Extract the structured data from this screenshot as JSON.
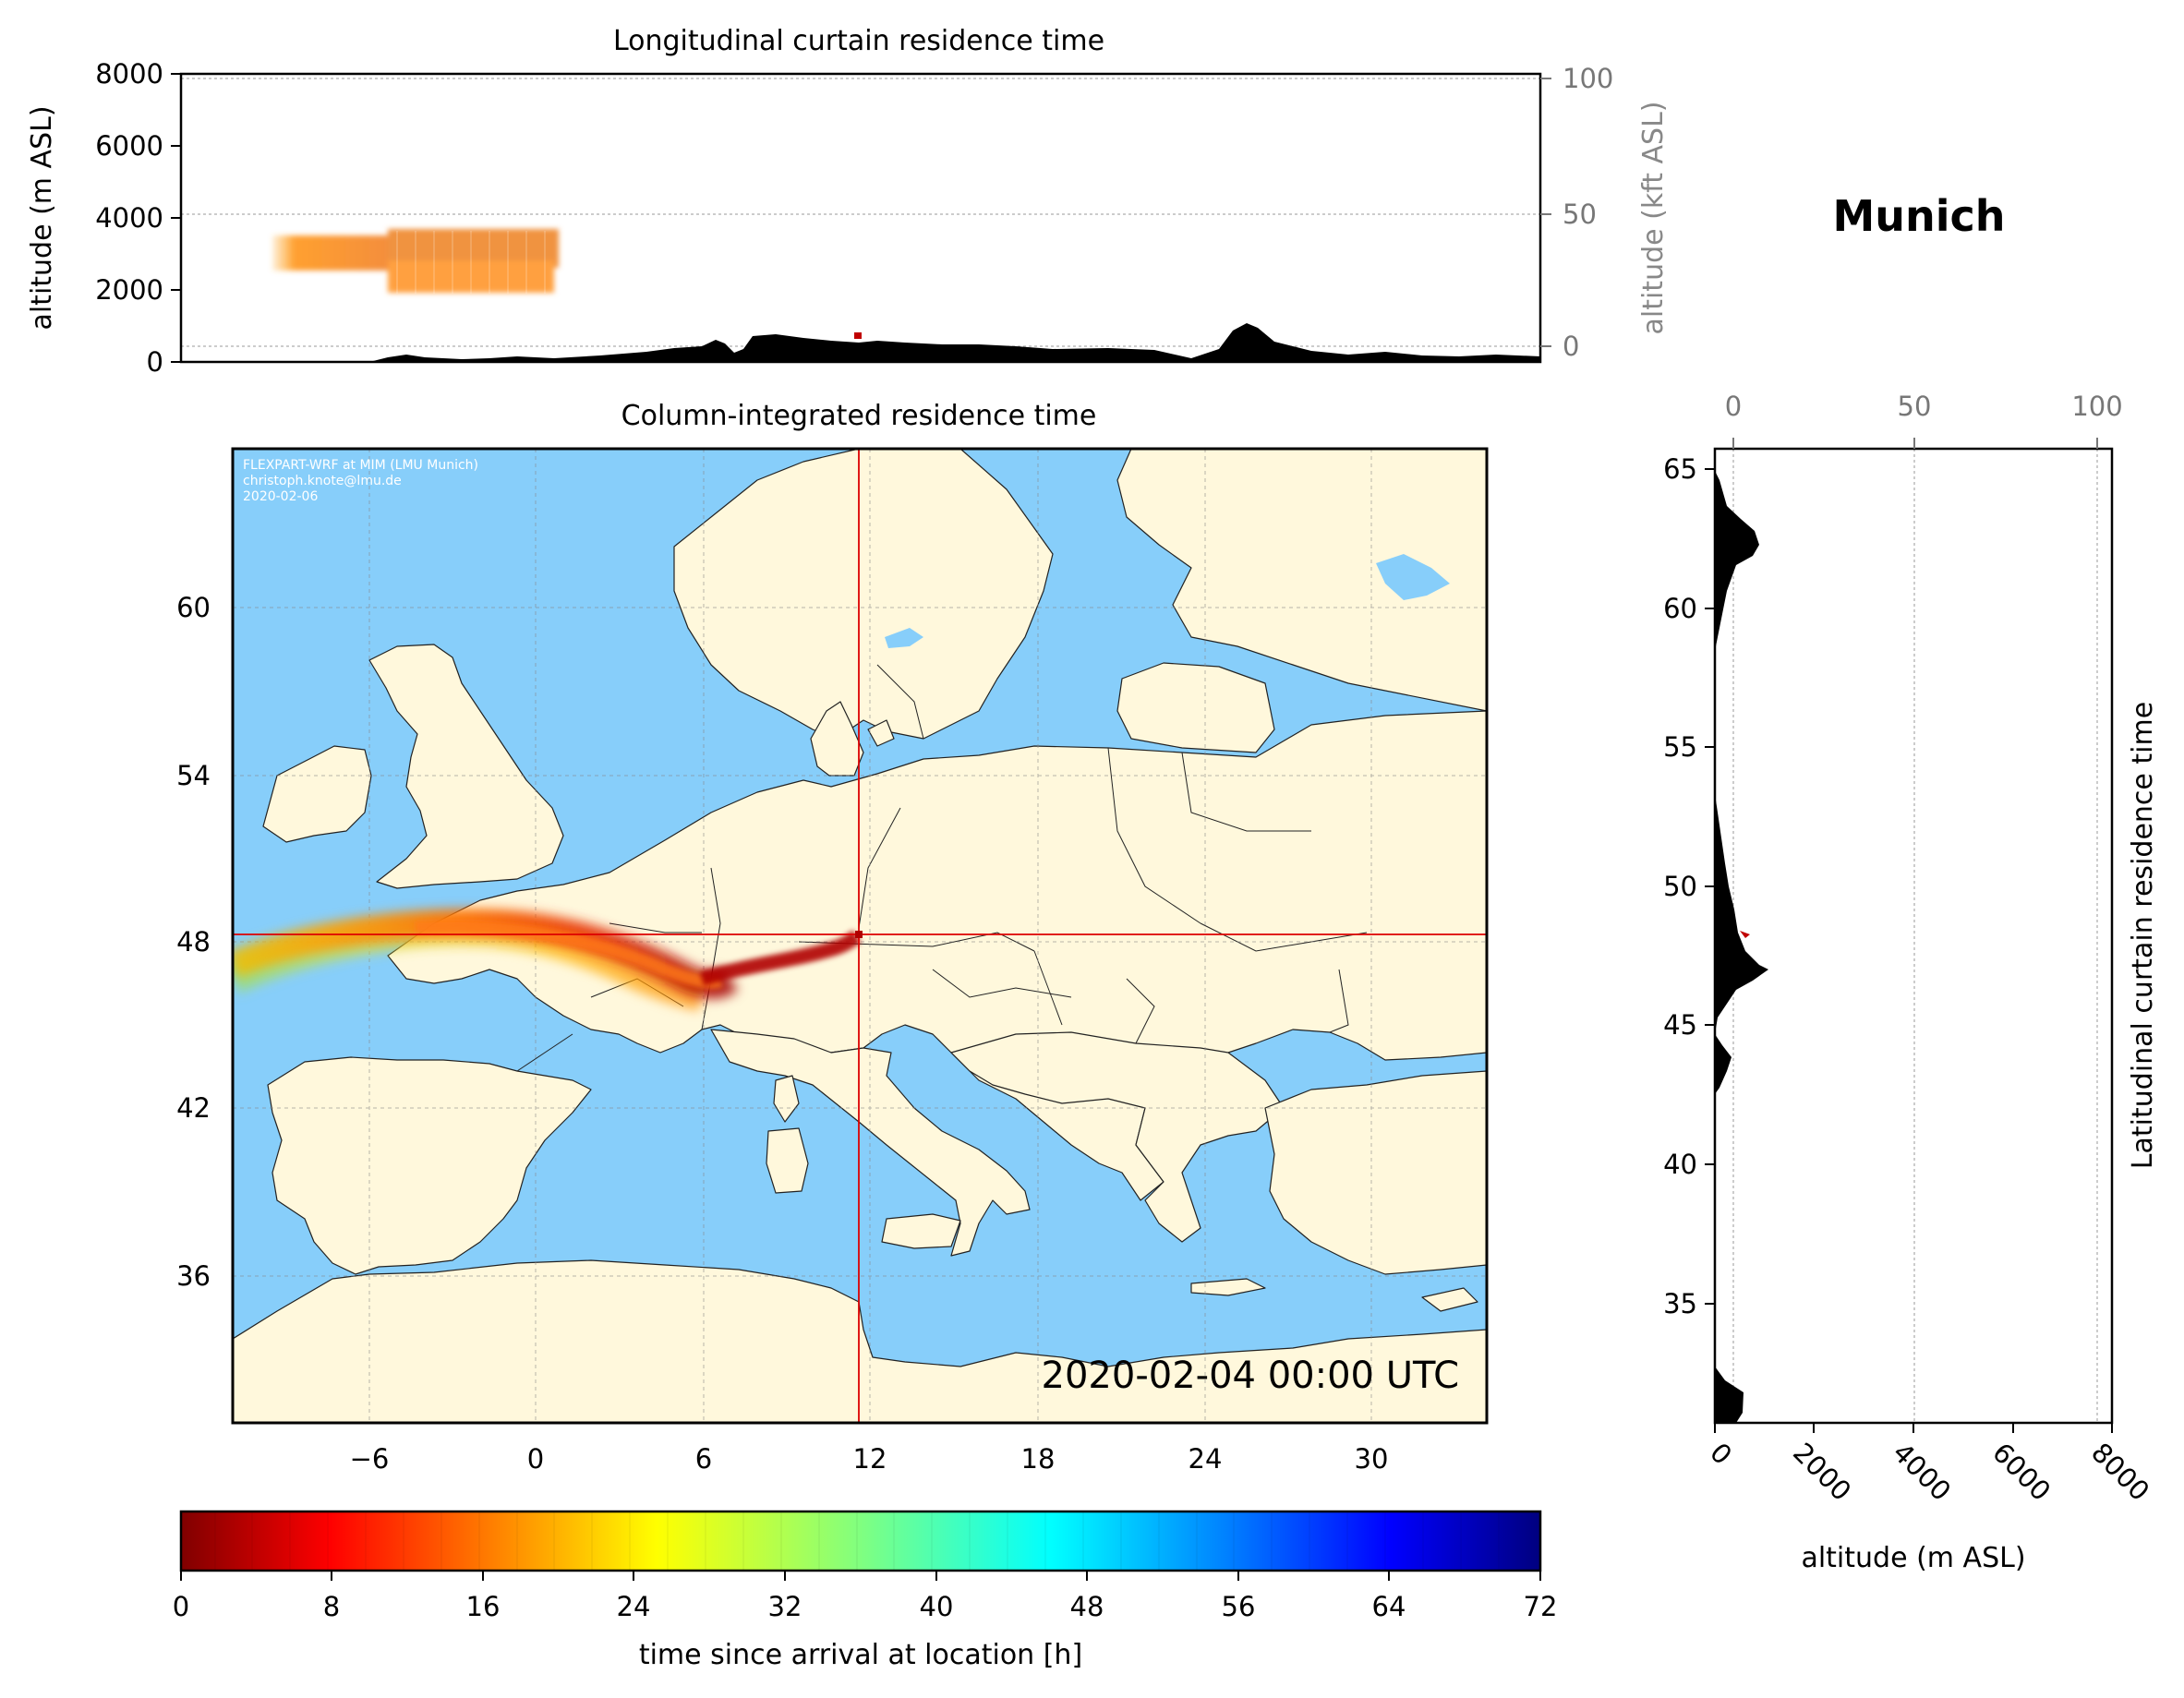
{
  "location": {
    "name": "Munich"
  },
  "longitudinal_curtain": {
    "title": "Longitudinal curtain residence time",
    "ylabel_left": "altitude (m ASL)",
    "ylabel_right": "altitude (kft ASL)",
    "ylim_m": [
      0,
      8000
    ],
    "yticks_m": [
      "0",
      "2000",
      "4000",
      "6000",
      "8000"
    ],
    "yticks_kft": [
      "0",
      "50",
      "100"
    ],
    "grid": "dashed"
  },
  "map": {
    "title": "Column-integrated residence time",
    "credit_lines": [
      "FLEXPART-WRF at MIM (LMU Munich)",
      "christoph.knote@lmu.de",
      "2020-02-06"
    ],
    "timestamp": "2020-02-04 00:00 UTC",
    "xticks": [
      "−6",
      "0",
      "6",
      "12",
      "18",
      "24",
      "30"
    ],
    "yticks": [
      "36",
      "42",
      "48",
      "54",
      "60"
    ],
    "lon_range": [
      -11,
      34
    ],
    "lat_range": [
      30.8,
      65.8
    ],
    "crosshair": {
      "lon": 11.6,
      "lat": 48.2
    },
    "colors": {
      "ocean": "#87cefa",
      "land": "#fff8dc",
      "crosshair": "#dd0000"
    },
    "grid": "dashed"
  },
  "latitudinal_curtain": {
    "ylabel": "Latitudinal curtain residence time",
    "xlabel": "altitude (m ASL)",
    "xticks_m": [
      "0",
      "2000",
      "4000",
      "6000",
      "8000"
    ],
    "xticks_kft": [
      "0",
      "50",
      "100"
    ],
    "yticks": [
      "35",
      "40",
      "45",
      "50",
      "55",
      "60",
      "65"
    ]
  },
  "colorbar": {
    "label": "time since arrival at location [h]",
    "ticks": [
      "0",
      "8",
      "16",
      "24",
      "32",
      "40",
      "48",
      "56",
      "64",
      "72"
    ],
    "range": [
      0,
      72
    ],
    "colormap": "jet_r"
  }
}
